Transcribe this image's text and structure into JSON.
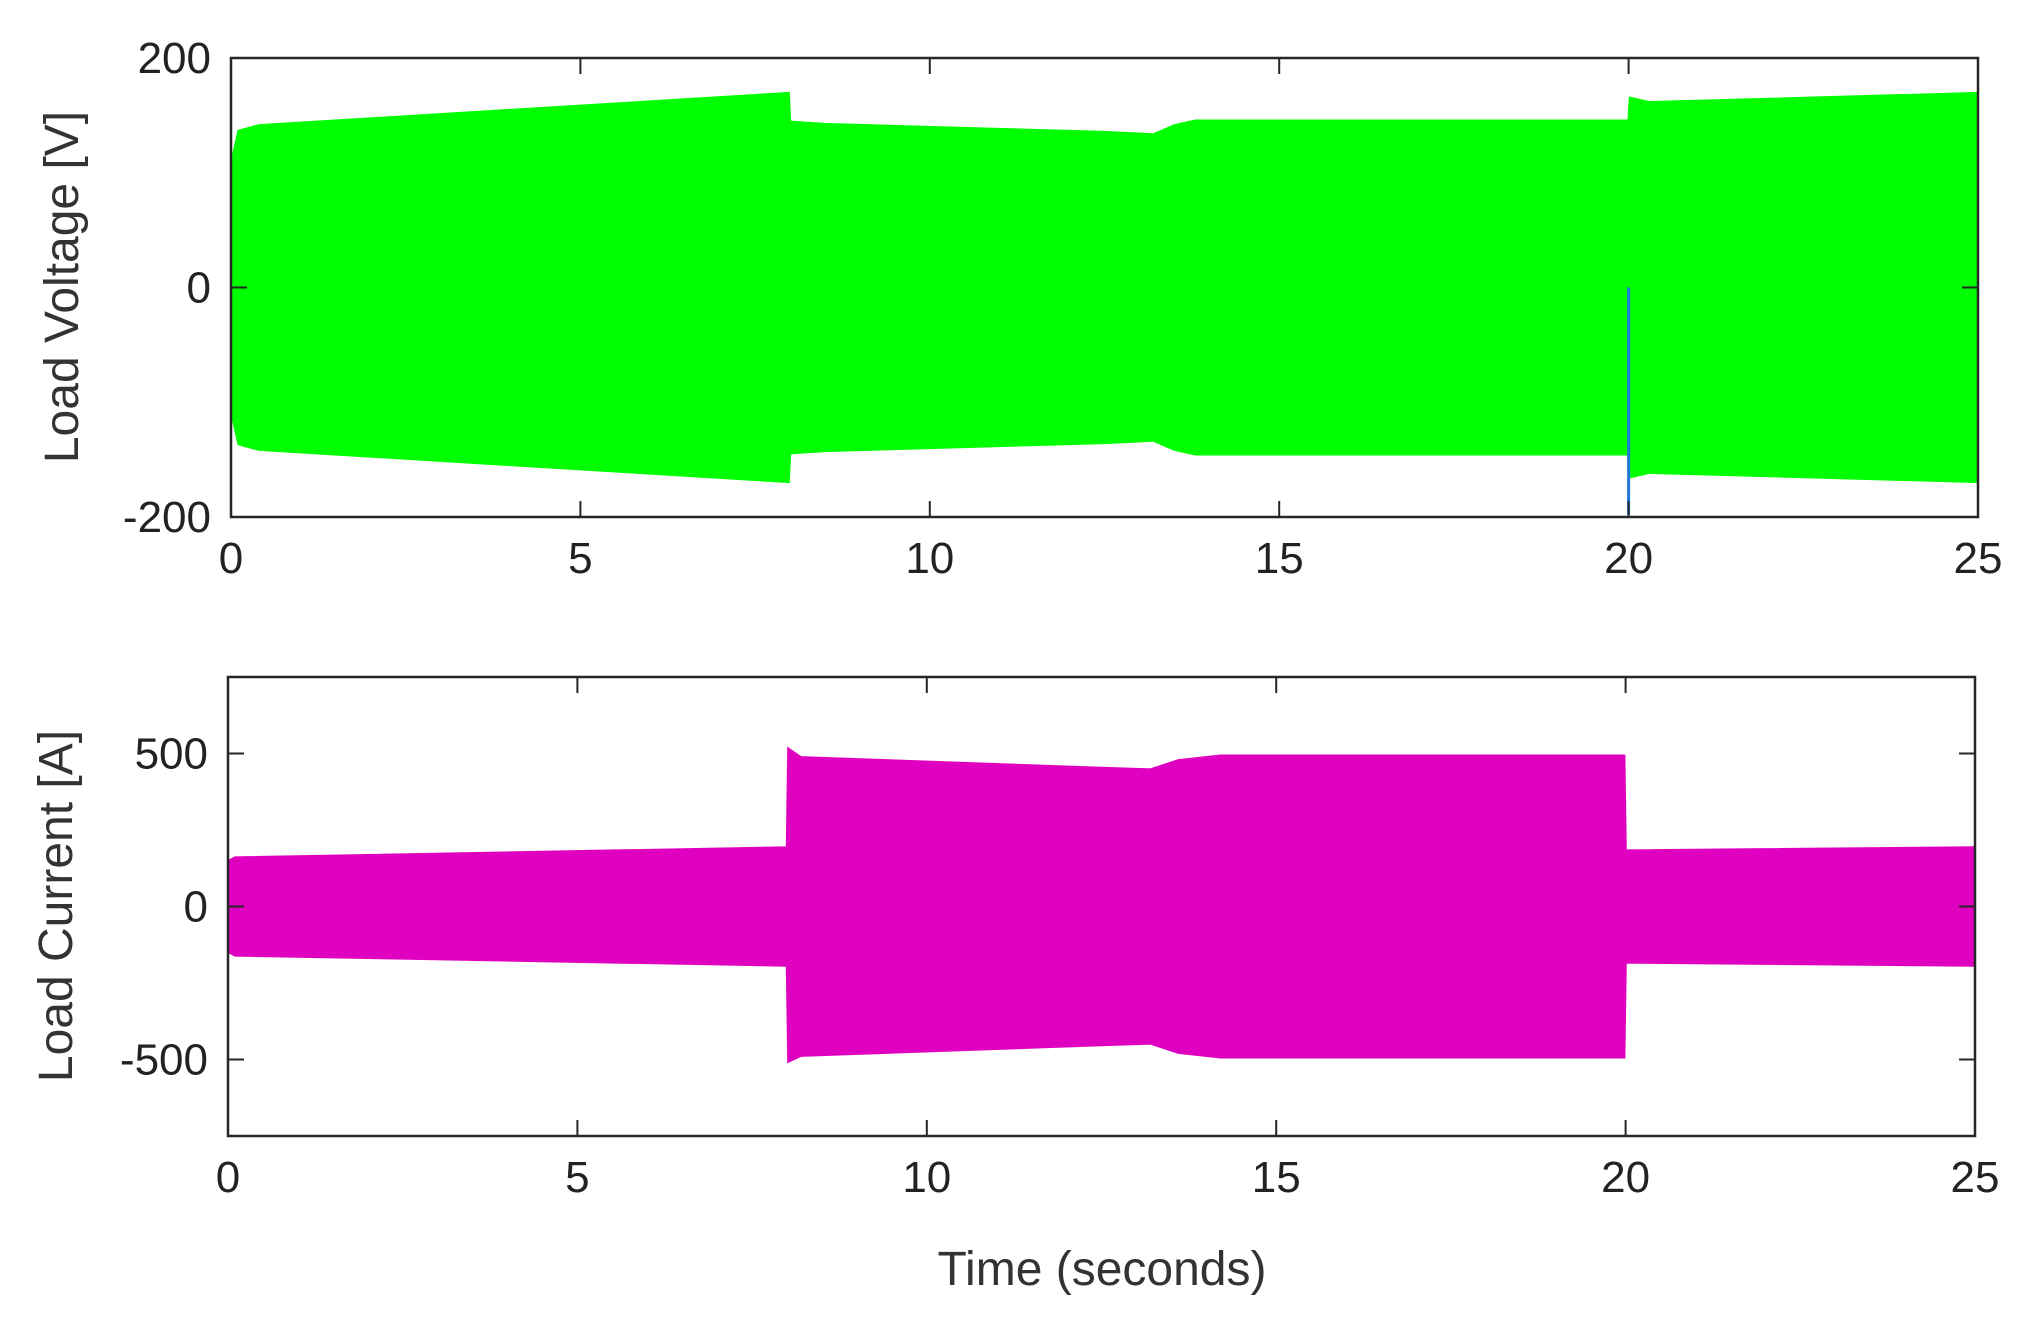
{
  "figure": {
    "xlabel": "Time (seconds)"
  },
  "chart_data": [
    {
      "type": "area",
      "name": "load-voltage",
      "ylabel": "Load Voltage [V]",
      "xlim": [
        0,
        25
      ],
      "ylim": [
        -200,
        200
      ],
      "xticks": [
        0,
        5,
        10,
        15,
        20,
        25
      ],
      "yticks": [
        -200,
        0,
        200
      ],
      "xticklabels": [
        "0",
        "5",
        "10",
        "15",
        "20",
        "25"
      ],
      "yticklabels": [
        "-200",
        "0",
        "200"
      ],
      "grid": false,
      "color": "#00ff00",
      "envelope": {
        "x": [
          0,
          0.1,
          0.4,
          7.99,
          8.01,
          8.5,
          12.5,
          13.2,
          13.5,
          13.8,
          19.99,
          20.01,
          20.3,
          25
        ],
        "upper": [
          110,
          137,
          142,
          170,
          145,
          143,
          136,
          134,
          142,
          146,
          146,
          166,
          162,
          170
        ],
        "lower": [
          -110,
          -137,
          -142,
          -170,
          -145,
          -143,
          -136,
          -134,
          -142,
          -146,
          -146,
          -166,
          -162,
          -170
        ]
      },
      "transient_spike": {
        "x": 20.0,
        "y": -198
      }
    },
    {
      "type": "area",
      "name": "load-current",
      "ylabel": "Load Current [A]",
      "xlim": [
        0,
        25
      ],
      "ylim": [
        -750,
        750
      ],
      "xticks": [
        0,
        5,
        10,
        15,
        20,
        25
      ],
      "yticks": [
        -500,
        0,
        500
      ],
      "xticklabels": [
        "0",
        "5",
        "10",
        "15",
        "20",
        "25"
      ],
      "yticklabels": [
        "-500",
        "0",
        "500"
      ],
      "grid": false,
      "color": "#e000c0",
      "envelope": {
        "x": [
          0,
          0.1,
          7.99,
          8.01,
          8.2,
          12.5,
          13.2,
          13.6,
          14.2,
          19.99,
          20.01,
          25
        ],
        "upper": [
          150,
          162,
          195,
          520,
          490,
          455,
          450,
          480,
          495,
          495,
          185,
          195
        ],
        "lower": [
          -150,
          -162,
          -195,
          -510,
          -490,
          -455,
          -450,
          -480,
          -495,
          -495,
          -185,
          -195
        ]
      }
    }
  ]
}
